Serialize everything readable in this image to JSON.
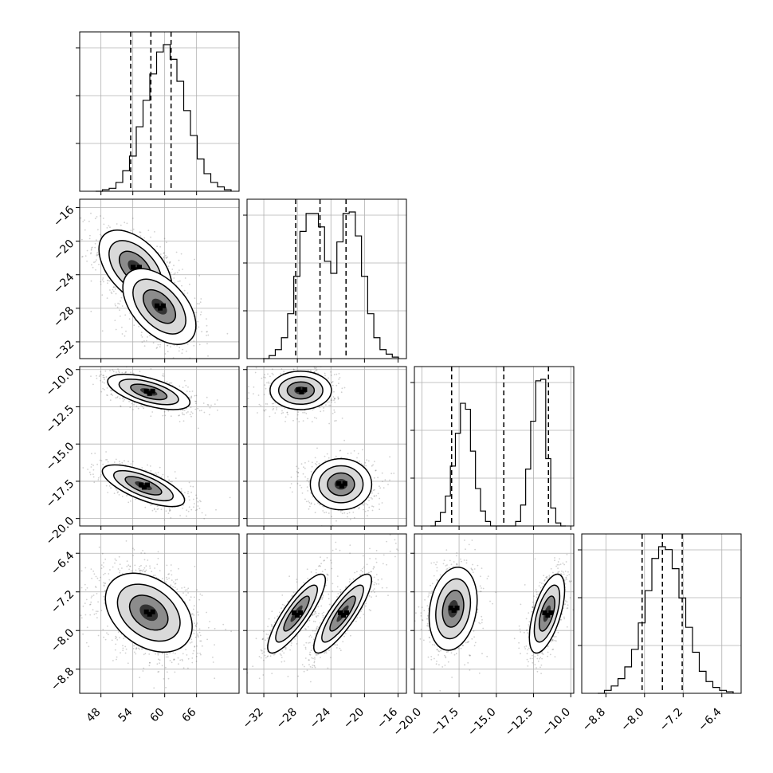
{
  "chart_data": {
    "type": "corner",
    "grid": true,
    "parameters": [
      {
        "range": [
          44,
          74
        ],
        "ticks": [
          "48",
          "54",
          "60",
          "66"
        ],
        "tick_values": [
          48,
          54,
          60,
          66
        ],
        "quantiles": [
          53.6,
          57.4,
          61.2
        ],
        "histogram": [
          0,
          1,
          2,
          6,
          14,
          24,
          44,
          62,
          80,
          95,
          100,
          90,
          75,
          55,
          38,
          22,
          12,
          6,
          3,
          1
        ]
      },
      {
        "range": [
          -34,
          -15
        ],
        "ticks": [
          "−32",
          "−28",
          "−24",
          "−20",
          "−16"
        ],
        "tick_values": [
          -32,
          -28,
          -24,
          -20,
          -16
        ],
        "quantiles": [
          -28.2,
          -25.3,
          -22.2
        ],
        "histogram": [
          0,
          2,
          6,
          14,
          30,
          55,
          85,
          97,
          97,
          88,
          65,
          57,
          78,
          97,
          98,
          82,
          55,
          30,
          14,
          6,
          3,
          1
        ]
      },
      {
        "range": [
          -20.5,
          -9.8
        ],
        "ticks": [
          "−20.0",
          "−17.5",
          "−15.0",
          "−12.5",
          "−10.0"
        ],
        "tick_values": [
          -20.0,
          -17.5,
          -15.0,
          -12.5,
          -10.0
        ],
        "quantiles": [
          -18.0,
          -14.5,
          -11.5
        ],
        "histogram": [
          0,
          3,
          9,
          20,
          40,
          62,
          82,
          78,
          50,
          25,
          10,
          3,
          0,
          0,
          0,
          0,
          0,
          3,
          14,
          38,
          70,
          97,
          98,
          45,
          12,
          2,
          0
        ]
      },
      {
        "range": [
          -9.3,
          -6.0
        ],
        "ticks": [
          "−8.8",
          "−8.0",
          "−7.2",
          "−6.4"
        ],
        "tick_values": [
          -8.8,
          -8.0,
          -7.2,
          -6.4
        ],
        "quantiles": [
          -8.05,
          -7.63,
          -7.22
        ],
        "histogram": [
          0,
          2,
          5,
          10,
          18,
          30,
          48,
          70,
          92,
          100,
          98,
          85,
          65,
          45,
          28,
          15,
          8,
          4,
          2,
          1
        ]
      }
    ],
    "pairs": [
      {
        "row": 1,
        "col": 0,
        "modes": [
          {
            "mean": [
              54.5,
              -23.2
            ],
            "sd": [
              3.2,
              2.1
            ],
            "corr": -0.5,
            "weight": 0.5
          },
          {
            "mean": [
              59.0,
              -27.8
            ],
            "sd": [
              3.2,
              2.1
            ],
            "corr": -0.5,
            "weight": 0.5
          }
        ]
      },
      {
        "row": 2,
        "col": 0,
        "modes": [
          {
            "mean": [
              57.0,
              -11.5
            ],
            "sd": [
              3.6,
              0.55
            ],
            "corr": -0.6,
            "weight": 0.5
          },
          {
            "mean": [
              56.0,
              -17.8
            ],
            "sd": [
              3.6,
              0.65
            ],
            "corr": -0.7,
            "weight": 0.5
          }
        ]
      },
      {
        "row": 3,
        "col": 0,
        "modes": [
          {
            "mean": [
              57.0,
              -7.63
            ],
            "sd": [
              3.8,
              0.38
            ],
            "corr": -0.35,
            "weight": 1
          }
        ]
      },
      {
        "row": 2,
        "col": 1,
        "modes": [
          {
            "mean": [
              -27.6,
              -11.4
            ],
            "sd": [
              1.7,
              0.6
            ],
            "corr": 0.0,
            "weight": 0.5
          },
          {
            "mean": [
              -22.8,
              -17.7
            ],
            "sd": [
              1.7,
              0.8
            ],
            "corr": 0.0,
            "weight": 0.5
          }
        ]
      },
      {
        "row": 3,
        "col": 1,
        "modes": [
          {
            "mean": [
              -28.1,
              -7.65
            ],
            "sd": [
              1.6,
              0.38
            ],
            "corr": 0.85,
            "weight": 0.5
          },
          {
            "mean": [
              -22.6,
              -7.65
            ],
            "sd": [
              1.6,
              0.38
            ],
            "corr": 0.85,
            "weight": 0.5
          }
        ]
      },
      {
        "row": 3,
        "col": 2,
        "modes": [
          {
            "mean": [
              -17.9,
              -7.55
            ],
            "sd": [
              0.75,
              0.4
            ],
            "corr": 0.2,
            "weight": 0.5
          },
          {
            "mean": [
              -11.6,
              -7.65
            ],
            "sd": [
              0.55,
              0.38
            ],
            "corr": 0.6,
            "weight": 0.5
          }
        ]
      }
    ]
  }
}
